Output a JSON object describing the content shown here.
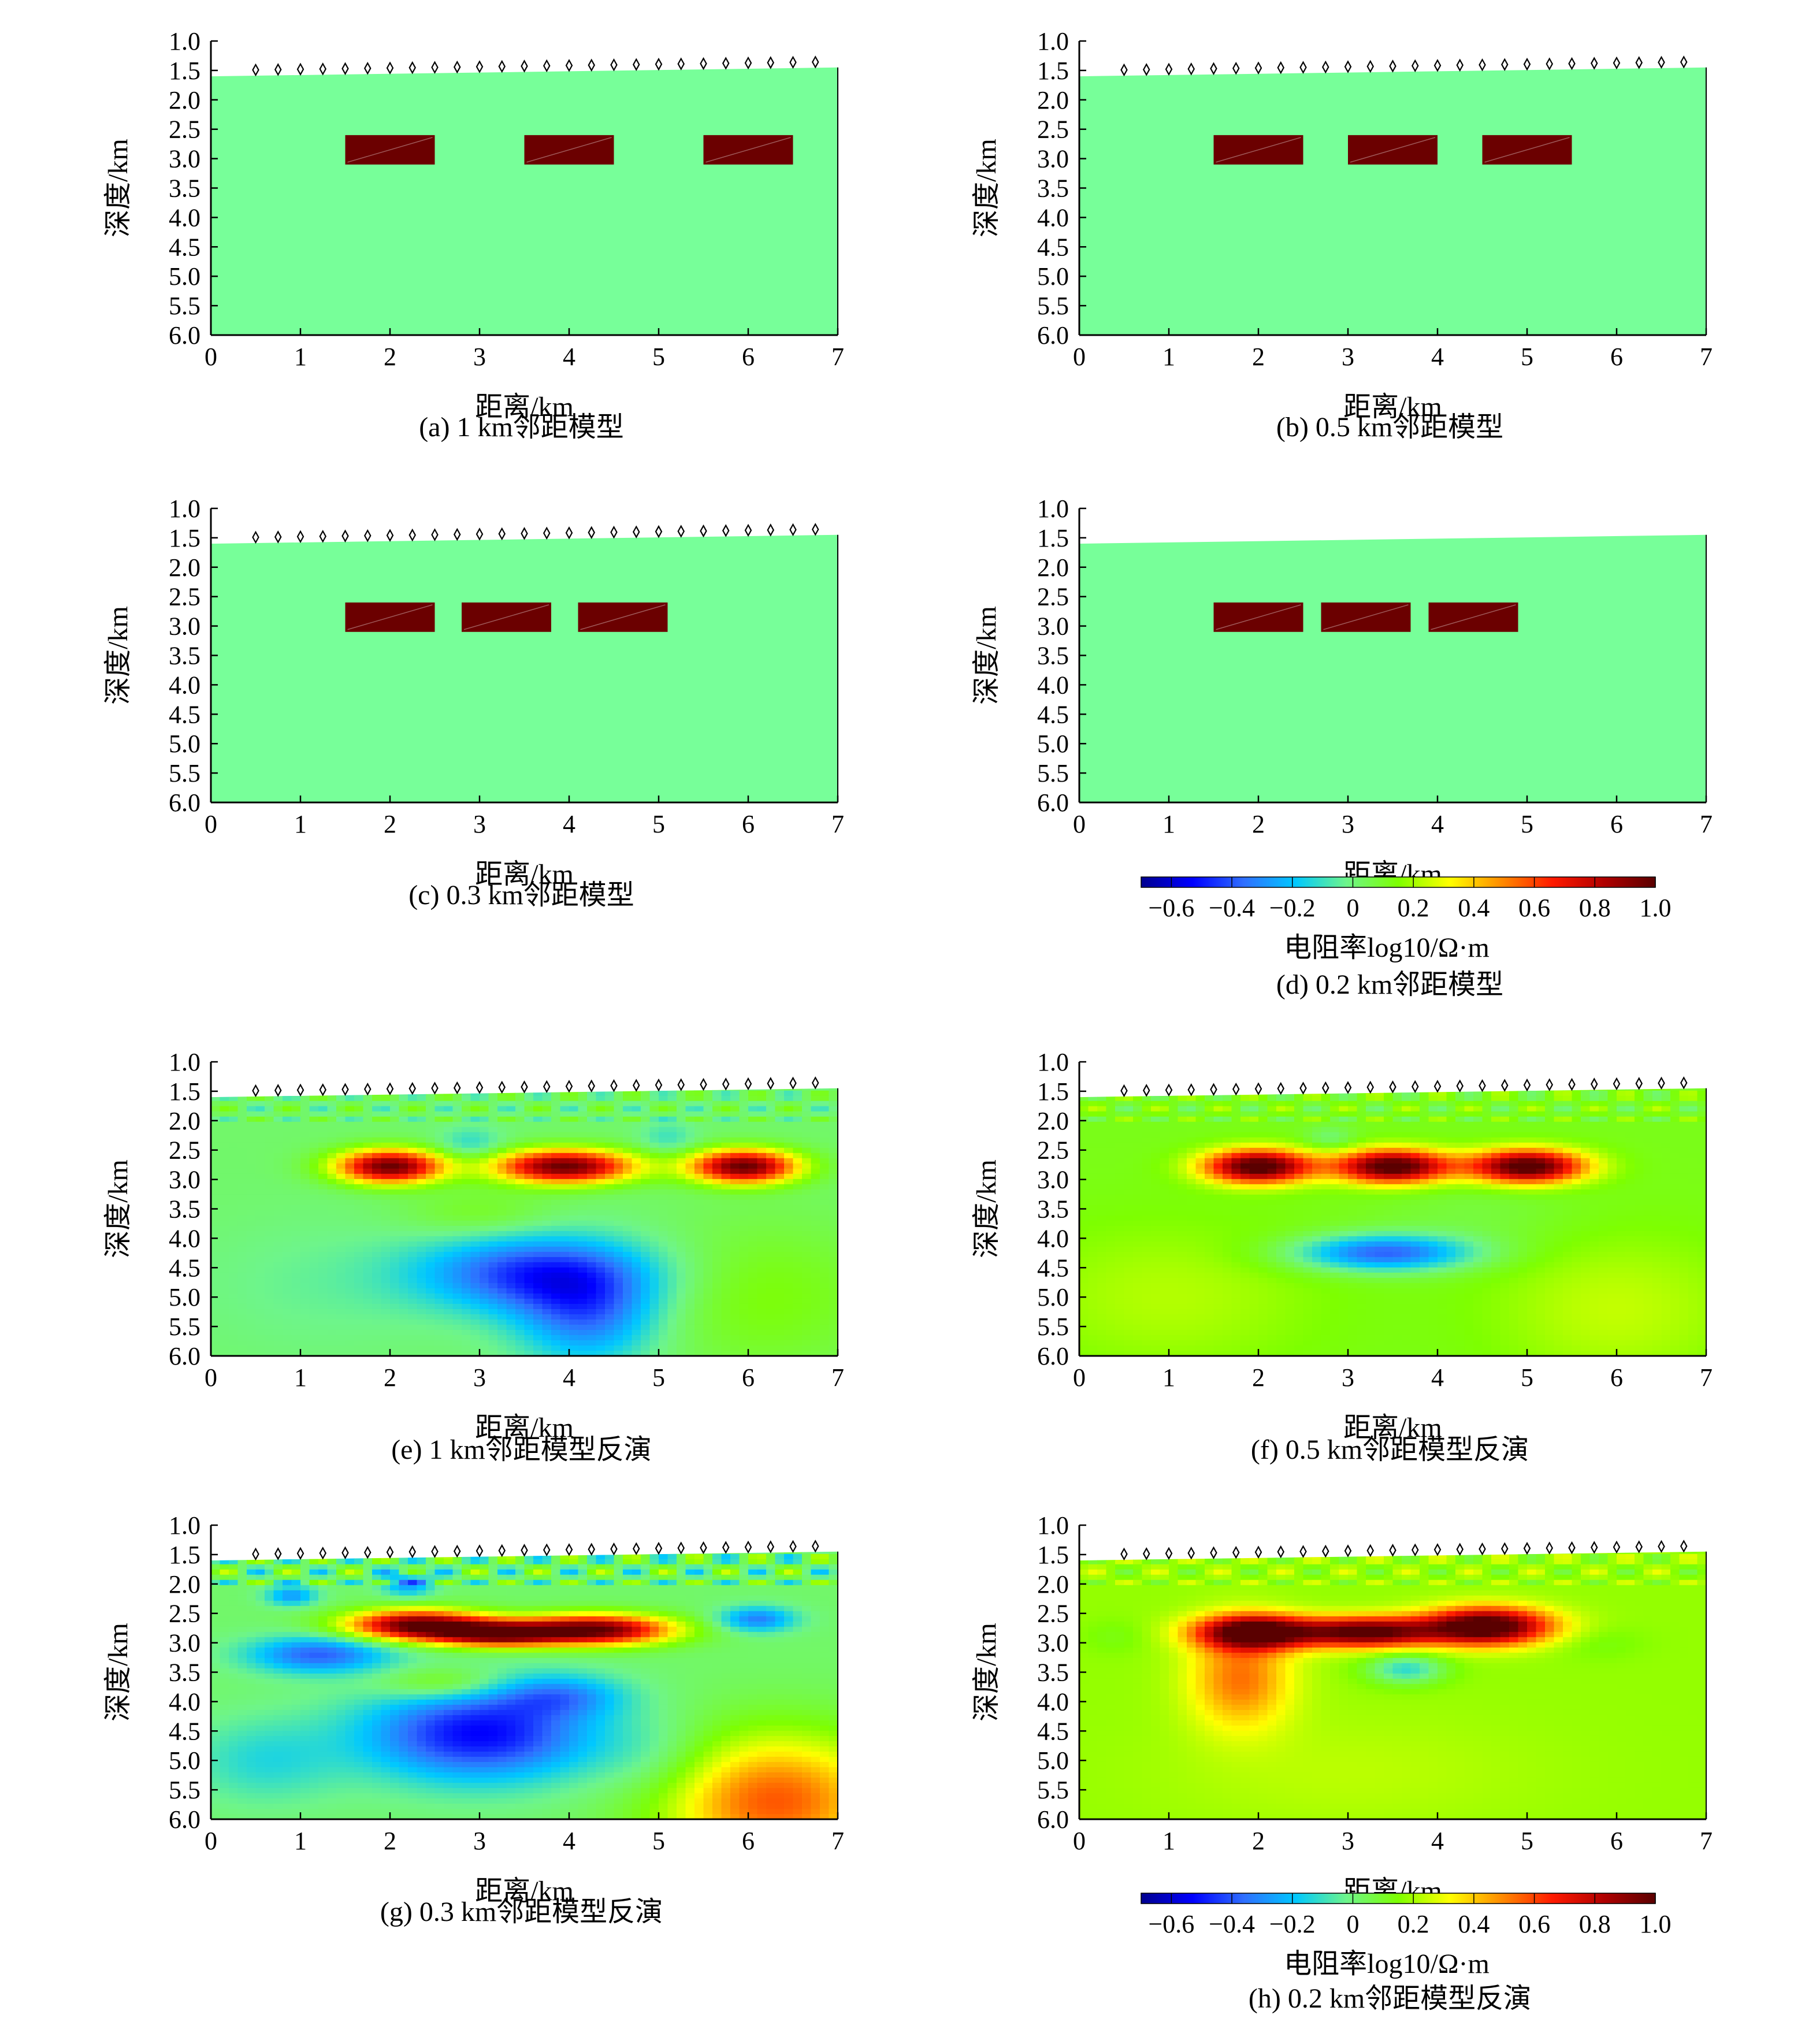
{
  "figure": {
    "panels": [
      {
        "id": "a",
        "caption": "(a) 1 km邻距模型",
        "type": "model",
        "centers": [
          2.0,
          4.0,
          6.0
        ],
        "stations": true
      },
      {
        "id": "b",
        "caption": "(b) 0.5 km邻距模型",
        "type": "model",
        "centers": [
          2.0,
          3.5,
          5.0
        ],
        "stations": true
      },
      {
        "id": "c",
        "caption": "(c) 0.3 km邻距模型",
        "type": "model",
        "centers": [
          2.0,
          3.3,
          4.6
        ],
        "stations": true
      },
      {
        "id": "d",
        "caption": "(d) 0.2 km邻距模型",
        "type": "model",
        "centers": [
          2.0,
          3.2,
          4.4
        ],
        "stations": false
      },
      {
        "id": "e",
        "caption": "(e) 1 km邻距模型反演",
        "type": "inversion",
        "variant": "e",
        "stations": true
      },
      {
        "id": "f",
        "caption": "(f) 0.5 km邻距模型反演",
        "type": "inversion",
        "variant": "f",
        "stations": true
      },
      {
        "id": "g",
        "caption": "(g) 0.3 km邻距模型反演",
        "type": "inversion",
        "variant": "g",
        "stations": true
      },
      {
        "id": "h",
        "caption": "(h) 0.2 km邻距模型反演",
        "type": "inversion",
        "variant": "h",
        "stations": true
      }
    ],
    "colorbars": [
      {
        "after_panel": "d",
        "label": "电阻率log10/Ω·m"
      },
      {
        "after_panel": "h",
        "label": "电阻率log10/Ω·m"
      }
    ]
  },
  "chart_data": [
    {
      "type": "heatmap",
      "panel": "a",
      "xlabel": "距离/km",
      "ylabel": "深度/km",
      "xlim": [
        0,
        7
      ],
      "ylim": [
        6.0,
        1.0
      ],
      "xticks": [
        "0",
        "1",
        "2",
        "3",
        "4",
        "5",
        "6",
        "7"
      ],
      "yticks": [
        "1.0",
        "1.5",
        "2.0",
        "2.5",
        "3.0",
        "3.5",
        "4.0",
        "4.5",
        "5.0",
        "5.5",
        "6.0"
      ],
      "background_log10_resistivity": 0.2,
      "block_log10_resistivity": 1.0,
      "blocks": [
        {
          "x": [
            1.5,
            2.5
          ],
          "depth": [
            2.6,
            3.1
          ]
        },
        {
          "x": [
            3.5,
            4.5
          ],
          "depth": [
            2.6,
            3.1
          ]
        },
        {
          "x": [
            5.5,
            6.5
          ],
          "depth": [
            2.6,
            3.1
          ]
        }
      ]
    },
    {
      "type": "heatmap",
      "panel": "b",
      "xlabel": "距离/km",
      "ylabel": "深度/km",
      "xlim": [
        0,
        7
      ],
      "ylim": [
        6.0,
        1.0
      ],
      "xticks": [
        "0",
        "1",
        "2",
        "3",
        "4",
        "5",
        "6",
        "7"
      ],
      "yticks": [
        "1.0",
        "1.5",
        "2.0",
        "2.5",
        "3.0",
        "3.5",
        "4.0",
        "4.5",
        "5.0",
        "5.5",
        "6.0"
      ],
      "background_log10_resistivity": 0.2,
      "block_log10_resistivity": 1.0,
      "blocks": [
        {
          "x": [
            1.5,
            2.5
          ],
          "depth": [
            2.6,
            3.1
          ]
        },
        {
          "x": [
            3.0,
            4.0
          ],
          "depth": [
            2.6,
            3.1
          ]
        },
        {
          "x": [
            4.5,
            5.5
          ],
          "depth": [
            2.6,
            3.1
          ]
        }
      ]
    },
    {
      "type": "heatmap",
      "panel": "c",
      "xlabel": "距离/km",
      "ylabel": "深度/km",
      "xlim": [
        0,
        7
      ],
      "ylim": [
        6.0,
        1.0
      ],
      "xticks": [
        "0",
        "1",
        "2",
        "3",
        "4",
        "5",
        "6",
        "7"
      ],
      "yticks": [
        "1.0",
        "1.5",
        "2.0",
        "2.5",
        "3.0",
        "3.5",
        "4.0",
        "4.5",
        "5.0",
        "5.5",
        "6.0"
      ],
      "background_log10_resistivity": 0.2,
      "block_log10_resistivity": 1.0,
      "blocks": [
        {
          "x": [
            1.5,
            2.5
          ],
          "depth": [
            2.6,
            3.1
          ]
        },
        {
          "x": [
            2.8,
            3.8
          ],
          "depth": [
            2.6,
            3.1
          ]
        },
        {
          "x": [
            4.1,
            5.1
          ],
          "depth": [
            2.6,
            3.1
          ]
        }
      ]
    },
    {
      "type": "heatmap",
      "panel": "d",
      "xlabel": "距离/km",
      "ylabel": "深度/km",
      "xlim": [
        0,
        7
      ],
      "ylim": [
        6.0,
        1.0
      ],
      "xticks": [
        "0",
        "1",
        "2",
        "3",
        "4",
        "5",
        "6",
        "7"
      ],
      "yticks": [
        "1.0",
        "1.5",
        "2.0",
        "2.5",
        "3.0",
        "3.5",
        "4.0",
        "4.5",
        "5.0",
        "5.5",
        "6.0"
      ],
      "background_log10_resistivity": 0.2,
      "block_log10_resistivity": 1.0,
      "blocks": [
        {
          "x": [
            1.5,
            2.5
          ],
          "depth": [
            2.6,
            3.1
          ]
        },
        {
          "x": [
            2.7,
            3.7
          ],
          "depth": [
            2.6,
            3.1
          ]
        },
        {
          "x": [
            3.9,
            4.9
          ],
          "depth": [
            2.6,
            3.1
          ]
        }
      ]
    },
    {
      "type": "heatmap",
      "panel": "e",
      "xlabel": "距离/km",
      "ylabel": "深度/km",
      "xlim": [
        0,
        7
      ],
      "ylim": [
        6.0,
        1.0
      ],
      "xticks": [
        "0",
        "1",
        "2",
        "3",
        "4",
        "5",
        "6",
        "7"
      ],
      "yticks": [
        "1.0",
        "1.5",
        "2.0",
        "2.5",
        "3.0",
        "3.5",
        "4.0",
        "4.5",
        "5.0",
        "5.5",
        "6.0"
      ]
    },
    {
      "type": "heatmap",
      "panel": "f",
      "xlabel": "距离/km",
      "ylabel": "深度/km",
      "xlim": [
        0,
        7
      ],
      "ylim": [
        6.0,
        1.0
      ],
      "xticks": [
        "0",
        "1",
        "2",
        "3",
        "4",
        "5",
        "6",
        "7"
      ],
      "yticks": [
        "1.0",
        "1.5",
        "2.0",
        "2.5",
        "3.0",
        "3.5",
        "4.0",
        "4.5",
        "5.0",
        "5.5",
        "6.0"
      ]
    },
    {
      "type": "heatmap",
      "panel": "g",
      "xlabel": "距离/km",
      "ylabel": "深度/km",
      "xlim": [
        0,
        7
      ],
      "ylim": [
        6.0,
        1.0
      ],
      "xticks": [
        "0",
        "1",
        "2",
        "3",
        "4",
        "5",
        "6",
        "7"
      ],
      "yticks": [
        "1.0",
        "1.5",
        "2.0",
        "2.5",
        "3.0",
        "3.5",
        "4.0",
        "4.5",
        "5.0",
        "5.5",
        "6.0"
      ]
    },
    {
      "type": "heatmap",
      "panel": "h",
      "xlabel": "距离/km",
      "ylabel": "深度/km",
      "xlim": [
        0,
        7
      ],
      "ylim": [
        6.0,
        1.0
      ],
      "xticks": [
        "0",
        "1",
        "2",
        "3",
        "4",
        "5",
        "6",
        "7"
      ],
      "yticks": [
        "1.0",
        "1.5",
        "2.0",
        "2.5",
        "3.0",
        "3.5",
        "4.0",
        "4.5",
        "5.0",
        "5.5",
        "6.0"
      ]
    }
  ],
  "colorscale": {
    "range": [
      -0.7,
      1.0
    ],
    "ticks": [
      "−0.6",
      "−0.4",
      "−0.2",
      "0",
      "0.2",
      "0.4",
      "0.6",
      "0.8",
      "1.0"
    ],
    "colors": [
      "#00008f",
      "#0000ff",
      "#2f6fff",
      "#00c8ff",
      "#6ef58a",
      "#7dff00",
      "#ffff00",
      "#ff8c00",
      "#ff1a00",
      "#b00000",
      "#5a0000"
    ]
  },
  "colors": {
    "model_background": "#77ff99",
    "model_block": "#6b0000",
    "station_marker": "#000000"
  }
}
